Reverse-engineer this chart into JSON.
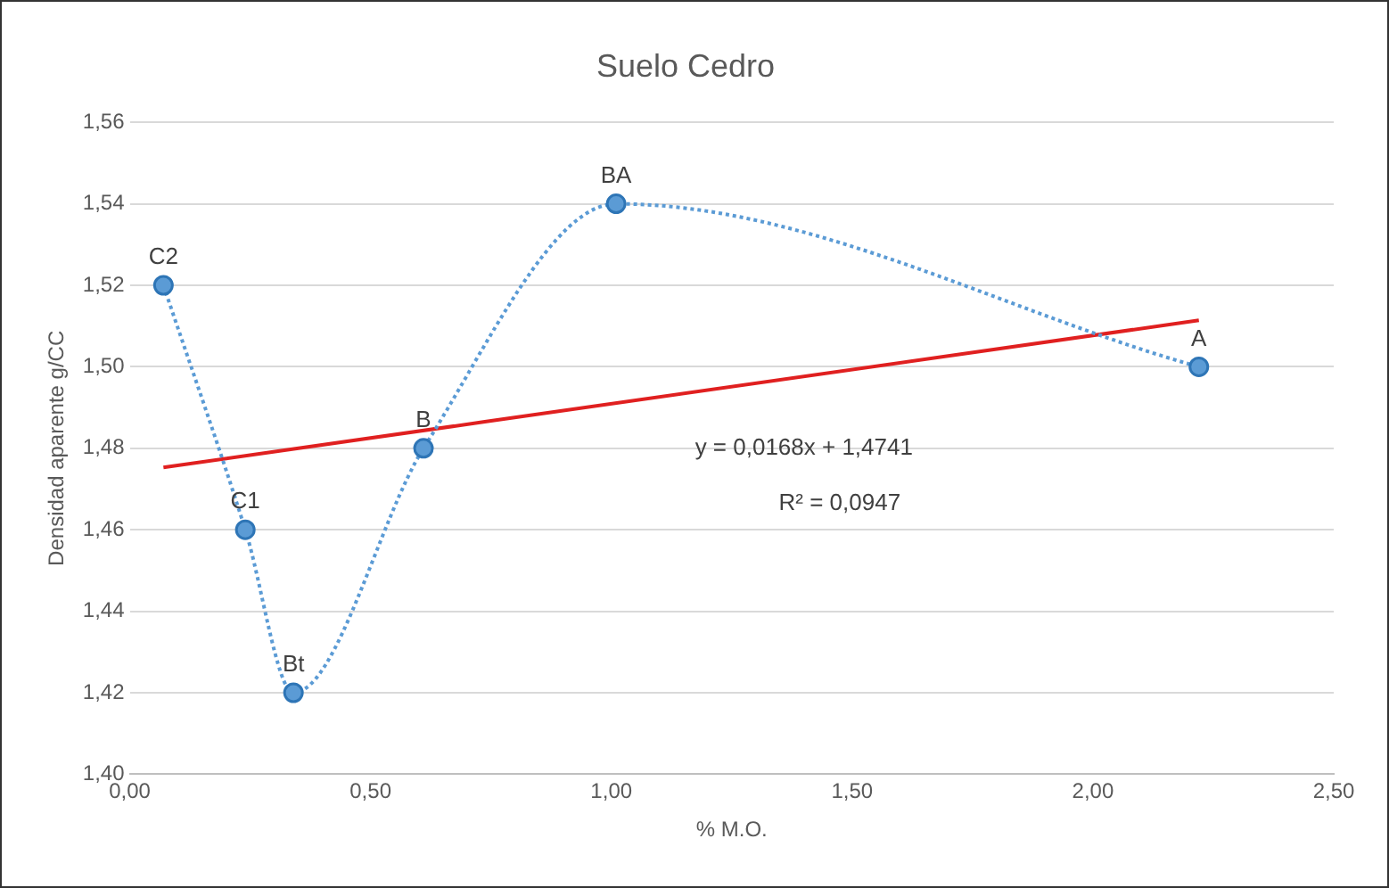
{
  "chart_data": {
    "type": "line",
    "title": "Suelo Cedro",
    "xlabel": "% M.O.",
    "ylabel": "Densidad aparente g/CC",
    "xlim": [
      0,
      2.5
    ],
    "xticks": [
      {
        "value": 0,
        "label": "0,00"
      },
      {
        "value": 0.5,
        "label": "0,50"
      },
      {
        "value": 1,
        "label": "1,00"
      },
      {
        "value": 1.5,
        "label": "1,50"
      },
      {
        "value": 2,
        "label": "2,00"
      },
      {
        "value": 2.5,
        "label": "2,50"
      }
    ],
    "ylim": [
      1.4,
      1.56
    ],
    "yticks": [
      {
        "value": 1.4,
        "label": "1,40"
      },
      {
        "value": 1.42,
        "label": "1,42"
      },
      {
        "value": 1.44,
        "label": "1,44"
      },
      {
        "value": 1.46,
        "label": "1,46"
      },
      {
        "value": 1.48,
        "label": "1,48"
      },
      {
        "value": 1.5,
        "label": "1,50"
      },
      {
        "value": 1.52,
        "label": "1,52"
      },
      {
        "value": 1.54,
        "label": "1,54"
      },
      {
        "value": 1.56,
        "label": "1,56"
      }
    ],
    "grid": "y",
    "legend": false,
    "series": [
      {
        "type": "line",
        "color": "#5b9bd5",
        "marker": "circle",
        "line_style": "dotted",
        "x": [
          0.07,
          0.24,
          0.34,
          0.61,
          1.01,
          2.22
        ],
        "values": [
          1.52,
          1.46,
          1.42,
          1.48,
          1.54,
          1.5
        ]
      },
      {
        "type": "line",
        "color": "#e02020",
        "marker": "none",
        "line_style": "solid",
        "x": [
          0.07,
          2.22
        ],
        "values": [
          1.4753,
          1.5114
        ]
      }
    ],
    "annotations": [
      {
        "text": "C2",
        "x": 0.07,
        "y": 1.52
      },
      {
        "text": "C1",
        "x": 0.24,
        "y": 1.46
      },
      {
        "text": "Bt",
        "x": 0.34,
        "y": 1.42
      },
      {
        "text": "B",
        "x": 0.61,
        "y": 1.48
      },
      {
        "text": "BA",
        "x": 1.01,
        "y": 1.54
      },
      {
        "text": "A",
        "x": 2.22,
        "y": 1.5
      },
      "y = 0,0168x + 1,4741",
      "R² = 0,0947"
    ]
  }
}
